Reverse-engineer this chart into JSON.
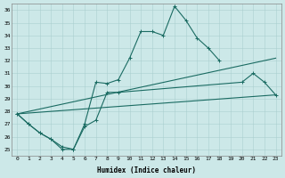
{
  "xlabel": "Humidex (Indice chaleur)",
  "xlim": [
    -0.5,
    23.5
  ],
  "ylim": [
    24.5,
    36.5
  ],
  "xticks": [
    0,
    1,
    2,
    3,
    4,
    5,
    6,
    7,
    8,
    9,
    10,
    11,
    12,
    13,
    14,
    15,
    16,
    17,
    18,
    19,
    20,
    21,
    22,
    23
  ],
  "yticks": [
    25,
    26,
    27,
    28,
    29,
    30,
    31,
    32,
    33,
    34,
    35,
    36
  ],
  "bg_color": "#cce8e8",
  "grid_color": "#aacfcf",
  "line_color": "#1a6b62",
  "line1": {
    "x": [
      0,
      1,
      2,
      3,
      4,
      5,
      6,
      7,
      8,
      9,
      10,
      11,
      12,
      13,
      14,
      15,
      16,
      17,
      18
    ],
    "y": [
      27.8,
      27.0,
      26.3,
      25.8,
      25.2,
      25.0,
      27.0,
      30.3,
      30.2,
      30.5,
      32.2,
      34.3,
      34.3,
      34.0,
      36.3,
      35.2,
      33.8,
      33.0,
      32.0
    ],
    "has_markers": true
  },
  "line2": {
    "x": [
      0,
      1,
      2,
      3,
      4,
      5,
      6,
      7,
      8,
      9,
      20,
      21,
      22,
      23
    ],
    "y": [
      27.8,
      27.0,
      26.3,
      25.8,
      25.0,
      25.0,
      26.8,
      27.3,
      29.5,
      29.5,
      30.3,
      31.0,
      30.3,
      29.3
    ],
    "has_markers": true
  },
  "line3": {
    "x": [
      0,
      23
    ],
    "y": [
      27.8,
      29.3
    ],
    "has_markers": false
  },
  "line4": {
    "x": [
      0,
      23
    ],
    "y": [
      27.8,
      32.2
    ],
    "has_markers": false
  }
}
